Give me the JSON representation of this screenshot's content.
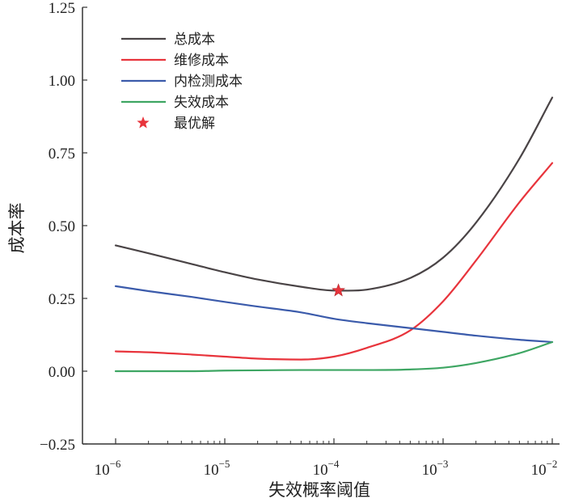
{
  "chart_data": {
    "type": "line",
    "xlabel": "失效概率阈值",
    "ylabel": "成本率",
    "x_scale": "log",
    "xlim": [
      1e-06,
      0.01
    ],
    "ylim": [
      -0.25,
      1.25
    ],
    "x_ticks": [
      {
        "value": 1e-06,
        "base": "10",
        "exp": "−6"
      },
      {
        "value": 1e-05,
        "base": "10",
        "exp": "−5"
      },
      {
        "value": 0.0001,
        "base": "10",
        "exp": "−4"
      },
      {
        "value": 0.001,
        "base": "10",
        "exp": "−3"
      },
      {
        "value": 0.01,
        "base": "10",
        "exp": "−2"
      }
    ],
    "y_ticks": [
      {
        "value": -0.25,
        "label": "−0.25"
      },
      {
        "value": 0.0,
        "label": "0.00"
      },
      {
        "value": 0.25,
        "label": "0.25"
      },
      {
        "value": 0.5,
        "label": "0.50"
      },
      {
        "value": 0.75,
        "label": "0.75"
      },
      {
        "value": 1.0,
        "label": "1.00"
      },
      {
        "value": 1.25,
        "label": "1.25"
      }
    ],
    "grid": false,
    "legend_position": "top-left",
    "series": [
      {
        "name": "总成本",
        "color": "#4a4446",
        "x": [
          1e-06,
          2e-06,
          5e-06,
          1e-05,
          2e-05,
          5e-05,
          0.0001,
          0.0002,
          0.0005,
          0.001,
          0.002,
          0.005,
          0.01
        ],
        "y": [
          0.432,
          0.405,
          0.368,
          0.34,
          0.315,
          0.29,
          0.277,
          0.28,
          0.32,
          0.39,
          0.51,
          0.73,
          0.94
        ]
      },
      {
        "name": "维修成本",
        "color": "#e8343c",
        "x": [
          1e-06,
          2e-06,
          5e-06,
          1e-05,
          2e-05,
          5e-05,
          0.0001,
          0.0002,
          0.0005,
          0.001,
          0.002,
          0.005,
          0.01
        ],
        "y": [
          0.068,
          0.065,
          0.057,
          0.05,
          0.043,
          0.04,
          0.05,
          0.08,
          0.14,
          0.24,
          0.38,
          0.58,
          0.715
        ]
      },
      {
        "name": "内检测成本",
        "color": "#3b5bab",
        "x": [
          1e-06,
          2e-06,
          5e-06,
          1e-05,
          2e-05,
          5e-05,
          0.0001,
          0.0002,
          0.0005,
          0.001,
          0.002,
          0.005,
          0.01
        ],
        "y": [
          0.292,
          0.275,
          0.255,
          0.238,
          0.222,
          0.202,
          0.18,
          0.165,
          0.148,
          0.135,
          0.122,
          0.108,
          0.1
        ]
      },
      {
        "name": "失效成本",
        "color": "#3ea663",
        "x": [
          1e-06,
          2e-06,
          5e-06,
          1e-05,
          2e-05,
          5e-05,
          0.0001,
          0.0002,
          0.0005,
          0.001,
          0.002,
          0.005,
          0.01
        ],
        "y": [
          0.0,
          0.0,
          0.0,
          0.002,
          0.003,
          0.004,
          0.004,
          0.004,
          0.006,
          0.012,
          0.028,
          0.062,
          0.1
        ]
      }
    ],
    "optimum": {
      "name": "最优解",
      "color": "#e8343c",
      "x": 0.00011,
      "y": 0.277
    }
  }
}
